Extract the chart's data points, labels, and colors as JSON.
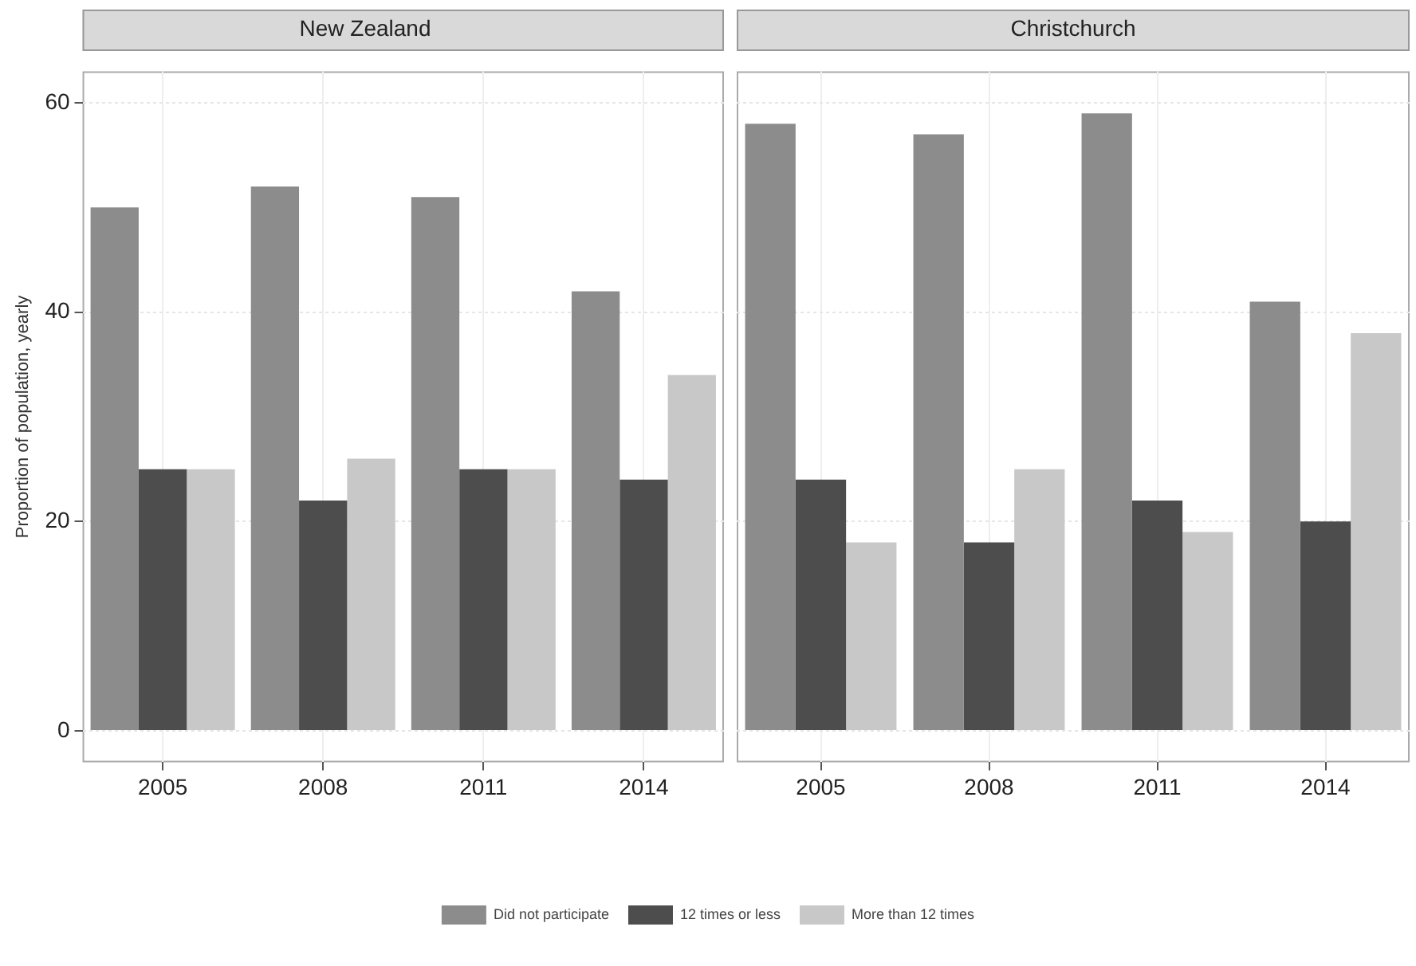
{
  "chart_data": [
    {
      "type": "bar",
      "title": "New Zealand",
      "ylabel": "Proportion of population, yearly",
      "categories": [
        "2005",
        "2008",
        "2011",
        "2014"
      ],
      "series": [
        {
          "name": "Did not participate",
          "color": "#8c8c8c",
          "values": [
            50,
            52,
            51,
            42
          ]
        },
        {
          "name": "12 times or less",
          "color": "#4d4d4d",
          "values": [
            25,
            22,
            25,
            24
          ]
        },
        {
          "name": "More than 12 times",
          "color": "#c8c8c8",
          "values": [
            25,
            26,
            25,
            34
          ]
        }
      ],
      "ylim": [
        -3,
        63
      ],
      "yticks": [
        0,
        20,
        40,
        60
      ],
      "grid": true,
      "legend": "bottom"
    },
    {
      "type": "bar",
      "title": "Christchurch",
      "categories": [
        "2005",
        "2008",
        "2011",
        "2014"
      ],
      "series": [
        {
          "color": "#8c8c8c",
          "values": [
            58,
            57,
            59,
            41
          ]
        },
        {
          "color": "#4d4d4d",
          "values": [
            24,
            18,
            22,
            20
          ]
        },
        {
          "color": "#c8c8c8",
          "values": [
            18,
            25,
            19,
            38
          ]
        }
      ],
      "ylim": [
        -3,
        63
      ],
      "yticks": [
        0,
        20,
        40,
        60
      ],
      "grid": true,
      "tick_labels": "x"
    }
  ]
}
